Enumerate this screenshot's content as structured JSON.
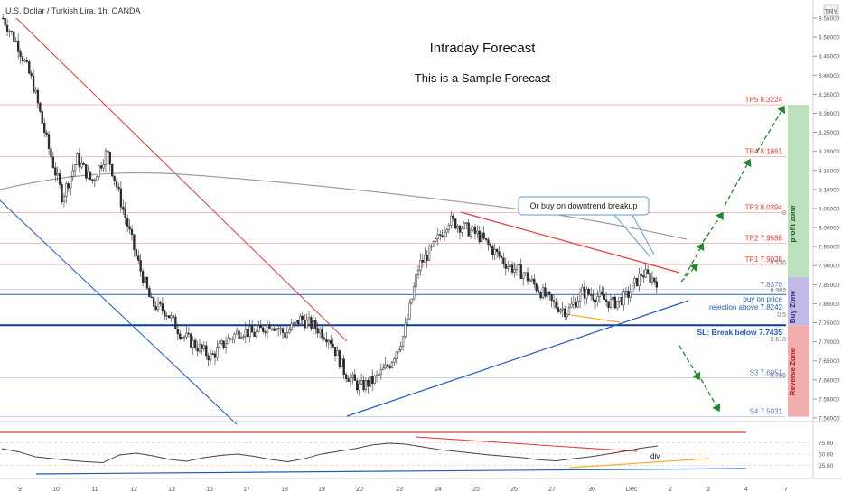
{
  "symbol_line": "U.S. Dollar / Turkish Lira, 1h, OANDA",
  "currency_badge": "TRY",
  "title": "Intraday Forecast",
  "subtitle": "This is a Sample Forecast",
  "colors": {
    "candle_up": "#26a69a",
    "candle_body": "#2b2b2b",
    "resistance_red": "#e53935",
    "support_blue": "#1e5bbf",
    "ma_gray": "#9e9e9e",
    "arrow_green": "#1b8a2c",
    "profit_zone": "#a5d6a7",
    "buy_zone": "#b3a9e0",
    "reverse_zone": "#ef9a9a",
    "rsi_orange": "#f5a623"
  },
  "annotations": {
    "breakout_note": "Or buy on downtrend breakup",
    "buy_on_price": "buy on price",
    "rejection": "rejection above 7.8242",
    "stop_loss": "SL: Break below 7.7435",
    "div": "div"
  },
  "zones": {
    "profit": "profit zone",
    "buy": "Buy Zone",
    "reverse": "Reverse Zone"
  },
  "fib_labels": [
    "0",
    "0.236",
    "0.382",
    "0.5",
    "0.618",
    "0.786"
  ],
  "chart_data": {
    "type": "candlestick",
    "instrument": "USD/TRY",
    "timeframe": "1h",
    "ylim": [
      7.5,
      8.57
    ],
    "y_ticks": [
      "8.55000",
      "8.50000",
      "8.45000",
      "8.40000",
      "8.35000",
      "8.30000",
      "8.25000",
      "8.20000",
      "8.15000",
      "8.10000",
      "8.05000",
      "8.00000",
      "7.95000",
      "7.90000",
      "7.85000",
      "7.80000",
      "7.75000",
      "7.70000",
      "7.65000",
      "7.60000",
      "7.55000",
      "7.50000"
    ],
    "x_ticks": [
      "9",
      "10",
      "11",
      "12",
      "13",
      "16",
      "17",
      "18",
      "19",
      "20",
      "23",
      "24",
      "25",
      "26",
      "27",
      "30",
      "Dec",
      "2",
      "3",
      "4",
      "7"
    ],
    "close_price_path": [
      8.55,
      8.48,
      8.38,
      8.22,
      8.08,
      8.18,
      8.12,
      8.2,
      8.06,
      7.92,
      7.8,
      7.78,
      7.72,
      7.69,
      7.66,
      7.7,
      7.73,
      7.72,
      7.75,
      7.72,
      7.76,
      7.74,
      7.71,
      7.62,
      7.58,
      7.6,
      7.64,
      7.72,
      7.9,
      7.95,
      8.02,
      8.0,
      7.98,
      7.94,
      7.9,
      7.88,
      7.84,
      7.8,
      7.78,
      7.83,
      7.82,
      7.8,
      7.82,
      7.88,
      7.86
    ],
    "levels": [
      {
        "label": "TP5 8.3224",
        "value": 8.3224
      },
      {
        "label": "TP4 8.1861",
        "value": 8.1861
      },
      {
        "label": "TP3 8.0394",
        "value": 8.0394
      },
      {
        "label": "TP2 7.9588",
        "value": 7.9588
      },
      {
        "label": "TP1 7.9028",
        "value": 7.9028
      },
      {
        "label": "7.8370",
        "value": 7.837
      },
      {
        "label": "S3 7.6051",
        "value": 7.6051
      },
      {
        "label": "S4 7.5031",
        "value": 7.5031
      }
    ],
    "rsi": {
      "ticks": [
        "75.00",
        "50.00",
        "25.00"
      ],
      "values": [
        62,
        55,
        44,
        40,
        36,
        33,
        31,
        48,
        52,
        46,
        38,
        34,
        42,
        47,
        50,
        45,
        38,
        33,
        40,
        50,
        56,
        62,
        70,
        74,
        72,
        66,
        60,
        56,
        52,
        48,
        45,
        42,
        37,
        35,
        40,
        44,
        50,
        56,
        63,
        68
      ]
    }
  }
}
